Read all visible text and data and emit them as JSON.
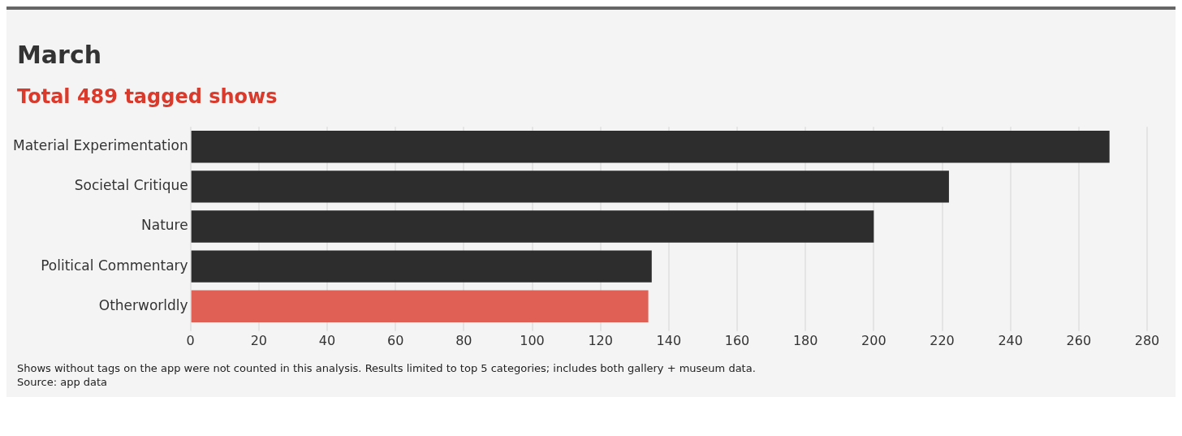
{
  "chart_data": {
    "type": "bar",
    "orientation": "horizontal",
    "title": "March",
    "subtitle": "Total 489 tagged shows",
    "categories": [
      "Material Experimentation",
      "Societal Critique",
      "Nature",
      "Political Commentary",
      "Otherworldly"
    ],
    "values": [
      269,
      222,
      200,
      135,
      134
    ],
    "colors": [
      "#2d2d2d",
      "#2d2d2d",
      "#2d2d2d",
      "#2d2d2d",
      "#e06055"
    ],
    "xlim": [
      0,
      280
    ],
    "xticks": [
      0,
      20,
      40,
      60,
      80,
      100,
      120,
      140,
      160,
      180,
      200,
      220,
      240,
      260,
      280
    ],
    "grid": "x",
    "annotations": [
      "Shows without tags on the app were not counted in this analysis. Results limited to top 5 categories; includes both gallery + museum data.",
      "Source: app data"
    ]
  }
}
